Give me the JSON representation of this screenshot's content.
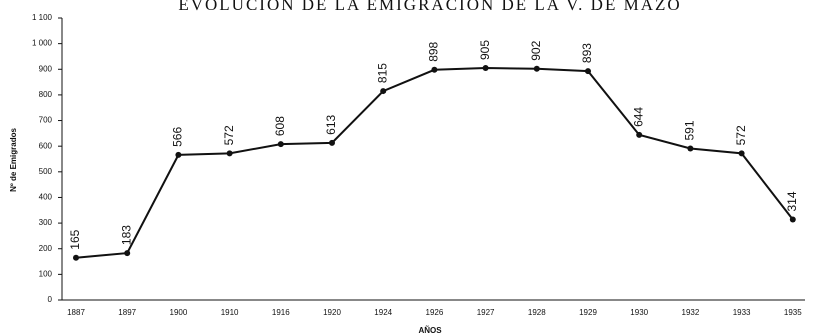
{
  "chart_data": {
    "type": "line",
    "title": "EVOLUCIÓN DE LA EMIGRACIÓN DE LA V. DE MAZO",
    "x_label": "AÑOS",
    "y_label": "Nº de Emigrados",
    "categories": [
      "1887",
      "1897",
      "1900",
      "1910",
      "1916",
      "1920",
      "1924",
      "1926",
      "1927",
      "1928",
      "1929",
      "1930",
      "1932",
      "1933",
      "1935"
    ],
    "values": [
      165,
      183,
      566,
      572,
      608,
      613,
      815,
      898,
      905,
      902,
      893,
      644,
      591,
      572,
      314
    ],
    "color": "#111111",
    "ylim": [
      0,
      1100
    ],
    "yticks": [
      0,
      100,
      200,
      300,
      400,
      500,
      600,
      700,
      800,
      900,
      {
        "value": 1000,
        "label": "1 000"
      },
      {
        "value": 1100,
        "label": "1 100"
      }
    ],
    "grid": false
  }
}
